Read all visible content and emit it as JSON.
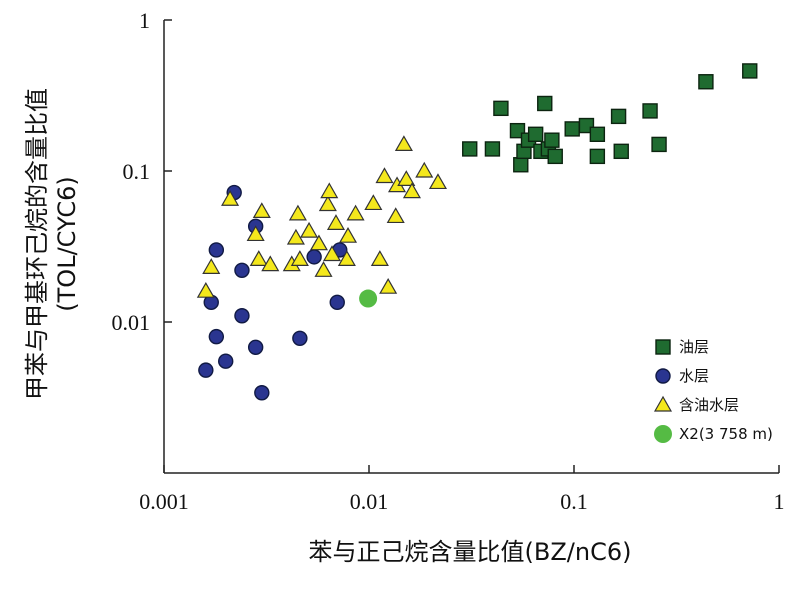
{
  "chart_data": {
    "type": "scatter",
    "xscale": "log",
    "yscale": "log",
    "xlim": [
      0.001,
      1
    ],
    "ylim": [
      0.001,
      1
    ],
    "xticks": [
      0.001,
      0.01,
      0.1,
      1
    ],
    "xtick_labels": [
      "0.001",
      "0.01",
      "0.1",
      "1"
    ],
    "yticks": [
      0.01,
      0.1,
      1
    ],
    "ytick_labels": [
      "0.01",
      "0.1",
      "1"
    ],
    "xlabel": "苯与正己烷含量比值(BZ/nC6)",
    "ylabel_line1": "甲苯与甲基环己烷的含量比值",
    "ylabel_line2": "(TOL/CYC6)",
    "legend_position": "bottom-right",
    "grid": false,
    "series": [
      {
        "name": "油层",
        "marker": "square",
        "color": "#1f6b30",
        "x": [
          0.031,
          0.04,
          0.044,
          0.053,
          0.055,
          0.057,
          0.06,
          0.065,
          0.069,
          0.072,
          0.075,
          0.078,
          0.081,
          0.098,
          0.115,
          0.13,
          0.13,
          0.165,
          0.17,
          0.235,
          0.26,
          0.44,
          0.72
        ],
        "y": [
          0.14,
          0.14,
          0.26,
          0.185,
          0.11,
          0.135,
          0.16,
          0.175,
          0.135,
          0.28,
          0.14,
          0.16,
          0.125,
          0.19,
          0.2,
          0.175,
          0.125,
          0.23,
          0.135,
          0.25,
          0.15,
          0.39,
          0.46
        ]
      },
      {
        "name": "水层",
        "marker": "circle",
        "color": "#2a3590",
        "x": [
          0.0016,
          0.0017,
          0.0018,
          0.0018,
          0.002,
          0.0022,
          0.0024,
          0.0024,
          0.0028,
          0.0028,
          0.003,
          0.0046,
          0.0054,
          0.007,
          0.0072
        ],
        "y": [
          0.0048,
          0.0135,
          0.008,
          0.03,
          0.0055,
          0.072,
          0.022,
          0.011,
          0.043,
          0.0068,
          0.0034,
          0.0078,
          0.027,
          0.0135,
          0.03
        ]
      },
      {
        "name": "含油水层",
        "marker": "triangle",
        "color": "#f4e81c",
        "x": [
          0.0016,
          0.0017,
          0.0021,
          0.0028,
          0.0029,
          0.003,
          0.0033,
          0.0042,
          0.0044,
          0.0045,
          0.0046,
          0.0051,
          0.0057,
          0.006,
          0.0063,
          0.0064,
          0.0066,
          0.0069,
          0.0078,
          0.0079,
          0.0086,
          0.0105,
          0.0113,
          0.0119,
          0.0124,
          0.0135,
          0.0137,
          0.0148,
          0.0152,
          0.0162,
          0.0186,
          0.0217
        ],
        "y": [
          0.016,
          0.023,
          0.065,
          0.038,
          0.026,
          0.054,
          0.024,
          0.024,
          0.036,
          0.052,
          0.026,
          0.04,
          0.033,
          0.022,
          0.06,
          0.073,
          0.028,
          0.045,
          0.026,
          0.037,
          0.052,
          0.061,
          0.026,
          0.092,
          0.017,
          0.05,
          0.08,
          0.15,
          0.088,
          0.073,
          0.1,
          0.084
        ]
      },
      {
        "name": "X2(3 758 m)",
        "marker": "circle-filled",
        "color": "#55bb44",
        "x": [
          0.0099
        ],
        "y": [
          0.0143
        ]
      }
    ]
  }
}
